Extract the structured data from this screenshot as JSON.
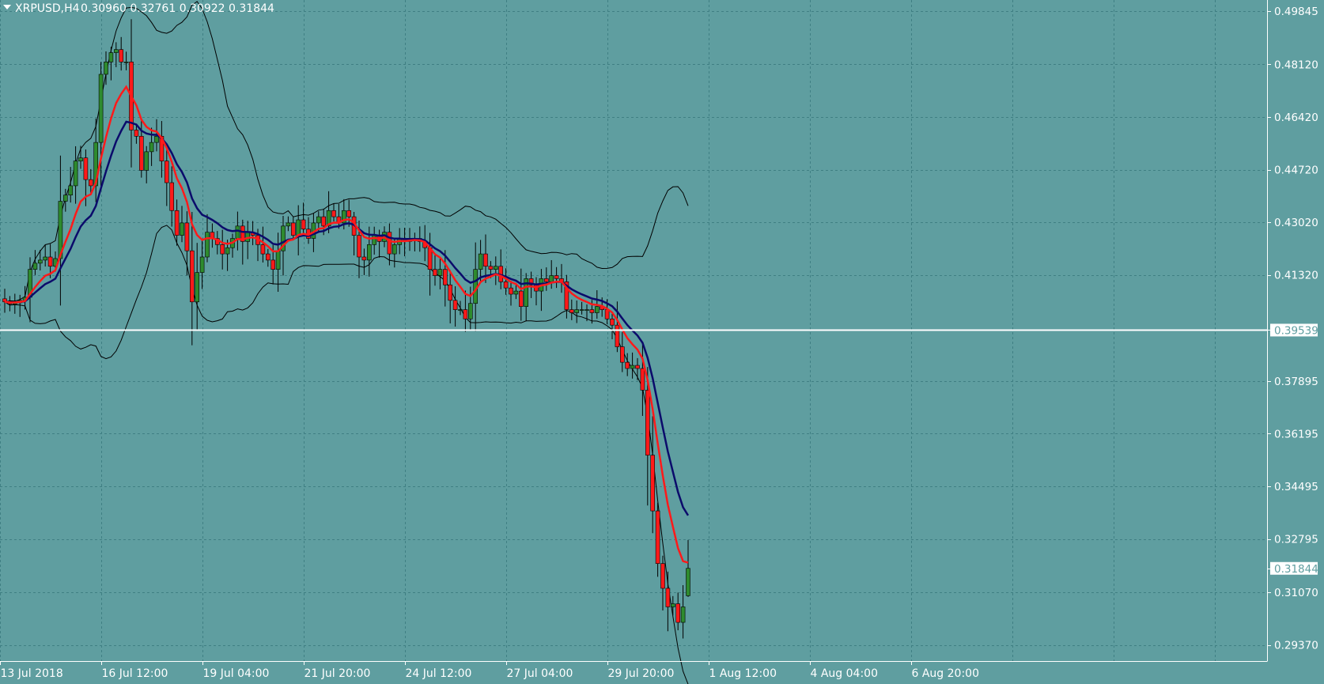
{
  "header": {
    "menu_icon": "triangle-down-icon",
    "symbol": "XRPUSD,H4",
    "ohlc": "0.30960 0.32761 0.30922 0.31844"
  },
  "colors": {
    "background": "#5f9ea0",
    "grid": "#3f7f83",
    "axis": "#ffffff",
    "bull": "#2e8b2e",
    "bear": "#ff1a1a",
    "wick": "#000000",
    "ma_fast": "#ff1a1a",
    "ma_slow": "#0b0b6b",
    "bands": "#000000",
    "hline": "#ffffff"
  },
  "price_axis": {
    "labels": [
      "0.49845",
      "0.48120",
      "0.46420",
      "0.44720",
      "0.43020",
      "0.41320",
      "0.39539",
      "0.37895",
      "0.36195",
      "0.34495",
      "0.32795",
      "0.31844",
      "0.31070",
      "0.29370"
    ]
  },
  "time_axis": {
    "labels": [
      "13 Jul 2018",
      "16 Jul 12:00",
      "19 Jul 04:00",
      "21 Jul 20:00",
      "24 Jul 12:00",
      "27 Jul 04:00",
      "29 Jul 20:00",
      "1 Aug 12:00",
      "4 Aug 04:00",
      "6 Aug 20:00"
    ]
  },
  "chart_data": {
    "type": "candlestick",
    "title": "XRPUSD,H4",
    "timeframe": "H4",
    "last_bar": {
      "open": 0.3096,
      "high": 0.32761,
      "low": 0.30922,
      "close": 0.31844
    },
    "ylim": [
      0.2885,
      0.502
    ],
    "y_ticks": [
      0.49845,
      0.4812,
      0.4642,
      0.4472,
      0.4302,
      0.4132,
      0.37895,
      0.36195,
      0.34495,
      0.32795,
      0.3107,
      0.2937
    ],
    "x_tick_labels": [
      "13 Jul 2018",
      "16 Jul 12:00",
      "19 Jul 04:00",
      "21 Jul 20:00",
      "24 Jul 12:00",
      "27 Jul 04:00",
      "29 Jul 20:00",
      "1 Aug 12:00",
      "4 Aug 04:00",
      "6 Aug 20:00"
    ],
    "horizontal_line": 0.39539,
    "current_price": 0.31844,
    "grid": true,
    "indicators": [
      "moving average (red)",
      "moving average (dark blue)",
      "bollinger bands (black)"
    ],
    "close": [
      0.4045,
      0.4038,
      0.4042,
      0.405,
      0.406,
      0.415,
      0.417,
      0.418,
      0.419,
      0.416,
      0.4185,
      0.437,
      0.439,
      0.442,
      0.45,
      0.451,
      0.444,
      0.442,
      0.456,
      0.478,
      0.482,
      0.485,
      0.486,
      0.482,
      0.482,
      0.46,
      0.458,
      0.447,
      0.453,
      0.456,
      0.458,
      0.45,
      0.443,
      0.434,
      0.426,
      0.43,
      0.421,
      0.4045,
      0.414,
      0.419,
      0.427,
      0.425,
      0.423,
      0.42,
      0.422,
      0.425,
      0.429,
      0.424,
      0.427,
      0.426,
      0.423,
      0.42,
      0.418,
      0.415,
      0.421,
      0.429,
      0.43,
      0.426,
      0.431,
      0.428,
      0.425,
      0.43,
      0.432,
      0.429,
      0.434,
      0.432,
      0.43,
      0.434,
      0.432,
      0.426,
      0.419,
      0.418,
      0.423,
      0.426,
      0.424,
      0.427,
      0.42,
      0.423,
      0.425,
      0.424,
      0.425,
      0.425,
      0.424,
      0.422,
      0.415,
      0.413,
      0.415,
      0.41,
      0.405,
      0.402,
      0.402,
      0.399,
      0.404,
      0.415,
      0.42,
      0.416,
      0.415,
      0.416,
      0.411,
      0.409,
      0.407,
      0.408,
      0.403,
      0.412,
      0.41,
      0.408,
      0.412,
      0.411,
      0.413,
      0.412,
      0.411,
      0.402,
      0.401,
      0.402,
      0.402,
      0.402,
      0.401,
      0.403,
      0.402,
      0.399,
      0.397,
      0.39,
      0.385,
      0.383,
      0.384,
      0.383,
      0.376,
      0.355,
      0.337,
      0.32,
      0.312,
      0.306,
      0.307,
      0.301,
      0.306,
      0.31844
    ]
  }
}
